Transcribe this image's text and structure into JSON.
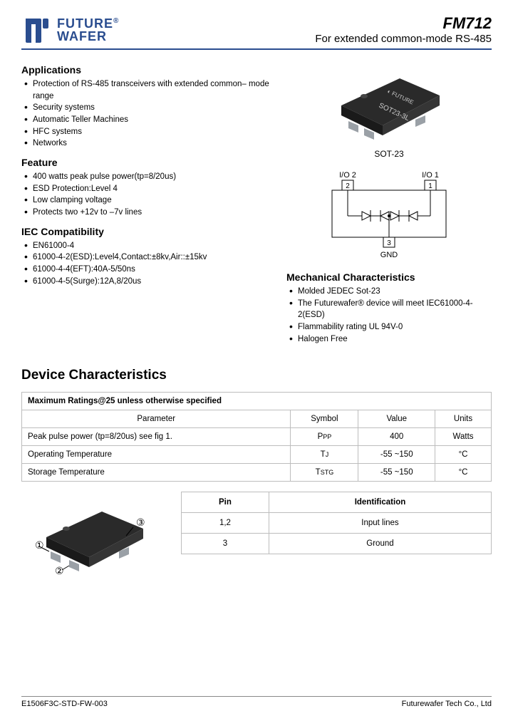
{
  "header": {
    "company_top": "FUTURE",
    "company_bottom": "WAFER",
    "part_number": "FM712",
    "subtitle": "For extended common-mode RS-485"
  },
  "logo_color": "#2a4d8f",
  "applications": {
    "heading": "Applications",
    "items": [
      "Protection of RS-485 transceivers with extended common– mode range",
      "Security systems",
      "Automatic Teller Machines",
      "HFC systems",
      "Networks"
    ]
  },
  "feature": {
    "heading": "Feature",
    "items": [
      "400 watts peak pulse power(tp=8/20us)",
      "ESD Protection:Level 4",
      "Low clamping voltage",
      "Protects two +12v to –7v lines"
    ]
  },
  "iec": {
    "heading": "IEC Compatibility",
    "items": [
      "EN61000-4",
      "61000-4-2(ESD):Level4,Contact:±8kv,Air::±15kv",
      "61000-4-4(EFT):40A-5/50ns",
      "61000-4-5(Surge):12A,8/20us"
    ]
  },
  "mech": {
    "heading": "Mechanical Characteristics",
    "items": [
      "Molded JEDEC Sot-23",
      "The Futurewafer® device will meet IEC61000-4-2(ESD)",
      "Flammability rating UL 94V-0",
      "Halogen Free"
    ]
  },
  "package_label": "SOT-23",
  "chip_text": "SOT23-3L",
  "schematic": {
    "io2": "I/O 2",
    "io1": "I/O 1",
    "gnd": "GND",
    "pin1": "1",
    "pin2": "2",
    "pin3": "3"
  },
  "device_char_heading": "Device Characteristics",
  "ratings_table": {
    "title": "Maximum Ratings@25 unless otherwise specified",
    "cols": [
      "Parameter",
      "Symbol",
      "Value",
      "Units"
    ],
    "rows": [
      {
        "param": "Peak pulse power (tp=8/20us) see fig 1.",
        "symbol_main": "P",
        "symbol_sub": "PP",
        "value": "400",
        "units": "Watts"
      },
      {
        "param": "Operating Temperature",
        "symbol_main": "T",
        "symbol_sub": "J",
        "value": "-55 ~150",
        "units": "°C"
      },
      {
        "param": "Storage Temperature",
        "symbol_main": "T",
        "symbol_sub": "STG",
        "value": "-55 ~150",
        "units": "°C"
      }
    ]
  },
  "pin_table": {
    "cols": [
      "Pin",
      "Identification"
    ],
    "rows": [
      {
        "pin": "1,2",
        "ident": "Input lines"
      },
      {
        "pin": "3",
        "ident": "Ground"
      }
    ]
  },
  "pin_labels": {
    "p1": "①",
    "p2": "②",
    "p3": "③"
  },
  "footer": {
    "doc_id": "E1506F3C-STD-FW-003",
    "company": "Futurewafer Tech Co., Ltd"
  },
  "colors": {
    "border": "#bdbdbd",
    "accent": "#2a4d8f",
    "chip_body": "#2a2a2a",
    "chip_lead": "#9aa0a6"
  }
}
